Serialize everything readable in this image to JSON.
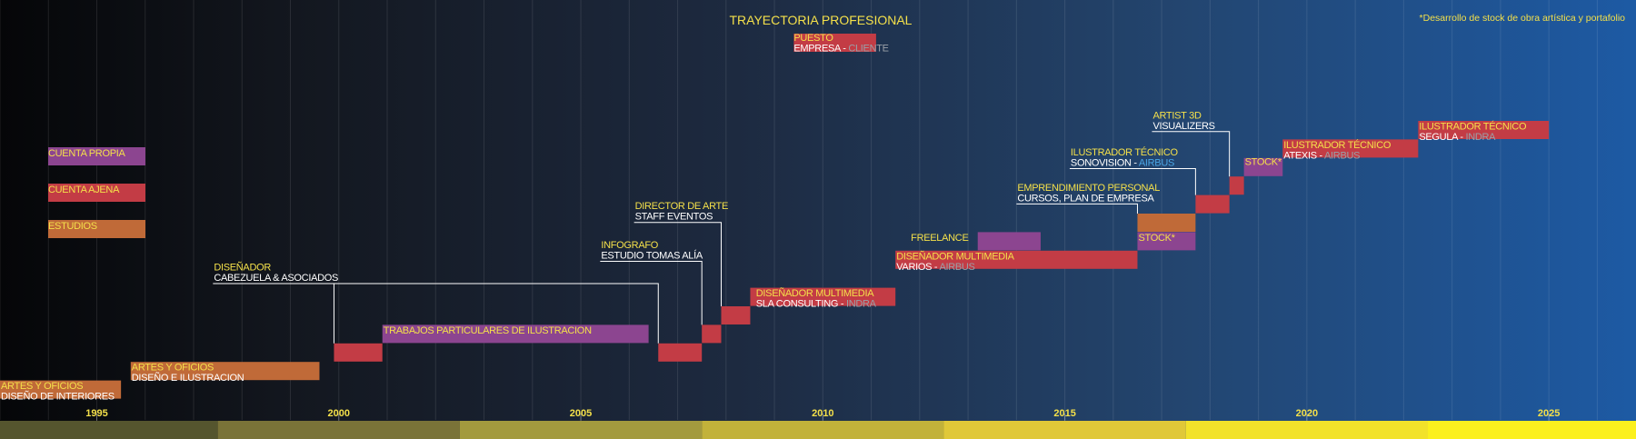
{
  "chart_data": {
    "type": "timeline",
    "title": "TRAYECTORIA PROFESIONAL",
    "note": "*Desarrollo de stock de obra artística y portafolio",
    "xlim": [
      1993,
      2026.8
    ],
    "ticks": [
      1995,
      2000,
      2005,
      2010,
      2015,
      2020,
      2025
    ],
    "axis_band_colors": [
      "#55552e",
      "#7a7338",
      "#a39a3e",
      "#c2b23a",
      "#e0c838",
      "#f2e22a",
      "#fbf01e"
    ],
    "colors": {
      "estudios": "#c06a38",
      "cuenta_ajena": "#c33c45",
      "cuenta_propia": "#8c4590",
      "yellow": "#f4e04a",
      "white": "#ffffff",
      "client_grey": "#9aa0a8",
      "client_blue": "#4aa6e6"
    },
    "legend": {
      "items": [
        {
          "label": "CUENTA PROPIA",
          "category": "cuenta_propia"
        },
        {
          "label": "CUENTA AJENA",
          "category": "cuenta_ajena"
        },
        {
          "label": "ESTUDIOS",
          "category": "estudios"
        }
      ],
      "key": {
        "puesto": "PUESTO",
        "empresa": "EMPRESA - ",
        "cliente": "CLIENTE"
      }
    },
    "bars": [
      {
        "start": 1993,
        "end": 1995.5,
        "row": 1,
        "category": "estudios"
      },
      {
        "start": 1995.7,
        "end": 1999.6,
        "row": 2,
        "category": "estudios"
      },
      {
        "start": 1999.9,
        "end": 2000.9,
        "row": 3,
        "category": "cuenta_ajena"
      },
      {
        "start": 2000.9,
        "end": 2006.4,
        "row": 4,
        "category": "cuenta_propia"
      },
      {
        "start": 2006.6,
        "end": 2007.5,
        "row": 3,
        "category": "cuenta_ajena"
      },
      {
        "start": 2007.5,
        "end": 2007.9,
        "row": 4,
        "category": "cuenta_ajena"
      },
      {
        "start": 2007.9,
        "end": 2008.5,
        "row": 5,
        "category": "cuenta_ajena"
      },
      {
        "start": 2008.5,
        "end": 2011.5,
        "row": 6,
        "category": "cuenta_ajena"
      },
      {
        "start": 2011.5,
        "end": 2016.5,
        "row": 8,
        "category": "cuenta_ajena"
      },
      {
        "start": 2013.2,
        "end": 2014.5,
        "row": 9,
        "category": "cuenta_propia"
      },
      {
        "start": 2016.5,
        "end": 2017.7,
        "row": 9,
        "category": "cuenta_propia"
      },
      {
        "start": 2016.5,
        "end": 2017.7,
        "row": 10,
        "category": "estudios"
      },
      {
        "start": 2017.7,
        "end": 2018.4,
        "row": 11,
        "category": "cuenta_ajena"
      },
      {
        "start": 2018.4,
        "end": 2018.7,
        "row": 12,
        "category": "cuenta_ajena"
      },
      {
        "start": 2018.7,
        "end": 2019.5,
        "row": 13,
        "category": "cuenta_propia"
      },
      {
        "start": 2019.5,
        "end": 2022.3,
        "row": 14,
        "category": "cuenta_ajena"
      },
      {
        "start": 2022.3,
        "end": 2025,
        "row": 15,
        "category": "cuenta_ajena"
      }
    ],
    "labels": [
      {
        "x": 1993.0,
        "row": 1,
        "lines": [
          {
            "parts": [
              {
                "t": "ARTES Y OFICIOS",
                "c": "yellow"
              }
            ]
          },
          {
            "parts": [
              {
                "t": "DISEÑO DE INTERIORES",
                "c": "white"
              }
            ]
          }
        ]
      },
      {
        "x": 1995.7,
        "row": 2,
        "lines": [
          {
            "parts": [
              {
                "t": "ARTES Y OFICIOS",
                "c": "yellow"
              }
            ]
          },
          {
            "parts": [
              {
                "t": "DISEÑO E ILUSTRACION",
                "c": "white"
              }
            ]
          }
        ]
      },
      {
        "x": 2000.9,
        "row": 4,
        "lines": [
          {
            "parts": [
              {
                "t": "TRABAJOS PARTICULARES DE ILUSTRACION",
                "c": "yellow"
              }
            ]
          }
        ]
      },
      {
        "x": 1997.4,
        "row": 7.4,
        "lines": [
          {
            "parts": [
              {
                "t": "DISEÑADOR",
                "c": "yellow"
              }
            ]
          },
          {
            "parts": [
              {
                "t": "CABEZUELA & ASOCIADOS",
                "c": "white"
              }
            ]
          }
        ]
      },
      {
        "x": 2005.4,
        "row": 8.6,
        "lines": [
          {
            "parts": [
              {
                "t": "INFOGRAFO",
                "c": "yellow"
              }
            ]
          },
          {
            "parts": [
              {
                "t": "ESTUDIO TOMAS ALÍA",
                "c": "white"
              }
            ]
          }
        ]
      },
      {
        "x": 2006.1,
        "row": 10.7,
        "lines": [
          {
            "parts": [
              {
                "t": "DIRECTOR DE ARTE",
                "c": "yellow"
              }
            ]
          },
          {
            "parts": [
              {
                "t": "STAFF EVENTOS",
                "c": "white"
              }
            ]
          }
        ]
      },
      {
        "x": 2008.6,
        "row": 6,
        "lines": [
          {
            "parts": [
              {
                "t": "DISEÑADOR  MULTIMEDIA",
                "c": "yellow"
              }
            ]
          },
          {
            "parts": [
              {
                "t": "SLA CONSULTING - ",
                "c": "white"
              },
              {
                "t": "INDRA",
                "c": "client_grey"
              }
            ]
          }
        ]
      },
      {
        "x": 2011.5,
        "row": 8,
        "lines": [
          {
            "parts": [
              {
                "t": "DISEÑADOR  MULTIMEDIA",
                "c": "yellow"
              }
            ]
          },
          {
            "parts": [
              {
                "t": "VARIOS - ",
                "c": "white"
              },
              {
                "t": "AIRBUS",
                "c": "client_grey"
              }
            ]
          }
        ]
      },
      {
        "x": 2011.8,
        "row": 9,
        "lines": [
          {
            "parts": [
              {
                "t": "FREELANCE",
                "c": "yellow"
              }
            ]
          }
        ]
      },
      {
        "x": 2016.5,
        "row": 9,
        "lines": [
          {
            "parts": [
              {
                "t": "STOCK*",
                "c": "yellow"
              }
            ]
          }
        ]
      },
      {
        "x": 2014.0,
        "row": 11.7,
        "lines": [
          {
            "parts": [
              {
                "t": "EMPRENDIMIENTO PERSONAL",
                "c": "yellow"
              }
            ]
          },
          {
            "parts": [
              {
                "t": "CURSOS,  PLAN DE EMPRESA",
                "c": "white"
              }
            ]
          }
        ]
      },
      {
        "x": 2015.1,
        "row": 13.6,
        "lines": [
          {
            "parts": [
              {
                "t": "ILUSTRADOR TÉCNICO",
                "c": "yellow"
              }
            ]
          },
          {
            "parts": [
              {
                "t": "SONOVISION - ",
                "c": "white"
              },
              {
                "t": "AIRBUS",
                "c": "client_blue"
              }
            ]
          }
        ]
      },
      {
        "x": 2016.8,
        "row": 15.6,
        "lines": [
          {
            "parts": [
              {
                "t": "ARTIST 3D",
                "c": "yellow"
              }
            ]
          },
          {
            "parts": [
              {
                "t": "VISUALIZERS",
                "c": "white"
              }
            ]
          }
        ]
      },
      {
        "x": 2018.7,
        "row": 13.1,
        "lines": [
          {
            "parts": [
              {
                "t": "STOCK*",
                "c": "yellow"
              }
            ]
          }
        ]
      },
      {
        "x": 2019.5,
        "row": 14,
        "lines": [
          {
            "parts": [
              {
                "t": "ILUSTRADOR TÉCNICO",
                "c": "yellow"
              }
            ]
          },
          {
            "parts": [
              {
                "t": "ATEXIS - ",
                "c": "white"
              },
              {
                "t": "AIRBUS",
                "c": "client_grey"
              }
            ]
          }
        ]
      },
      {
        "x": 2022.3,
        "row": 15,
        "lines": [
          {
            "parts": [
              {
                "t": "ILUSTRADOR TÉCNICO",
                "c": "yellow"
              }
            ]
          },
          {
            "parts": [
              {
                "t": "SEGULA - ",
                "c": "white"
              },
              {
                "t": "INDRA",
                "c": "client_grey"
              }
            ]
          }
        ]
      }
    ]
  }
}
